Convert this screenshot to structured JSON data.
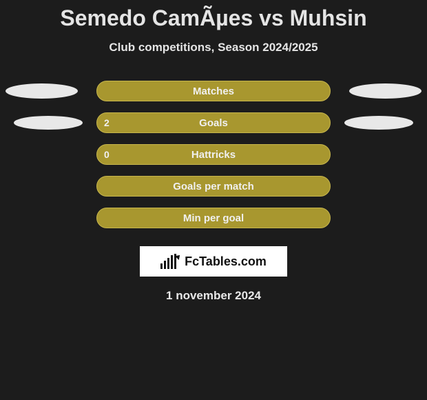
{
  "title": "Semedo CamÃµes vs Muhsin",
  "subtitle": "Club competitions, Season 2024/2025",
  "rows": [
    {
      "label": "Matches",
      "left_value": "",
      "show_left_ellipse": true,
      "show_right_ellipse": true,
      "ellipse_class_left": "ell-1-left",
      "ellipse_class_right": "ell-1-right"
    },
    {
      "label": "Goals",
      "left_value": "2",
      "show_left_ellipse": true,
      "show_right_ellipse": true,
      "ellipse_class_left": "ell-2-left",
      "ellipse_class_right": "ell-2-right"
    },
    {
      "label": "Hattricks",
      "left_value": "0",
      "show_left_ellipse": false,
      "show_right_ellipse": false
    },
    {
      "label": "Goals per match",
      "left_value": "",
      "show_left_ellipse": false,
      "show_right_ellipse": false
    },
    {
      "label": "Min per goal",
      "left_value": "",
      "show_left_ellipse": false,
      "show_right_ellipse": false
    }
  ],
  "logo_text": "FcTables.com",
  "date": "1 november 2024",
  "colors": {
    "background": "#1c1c1c",
    "bar_fill": "#a8972f",
    "bar_border": "#c7b64c",
    "ellipse": "#e8e8e8",
    "text_light": "#e4e4e4",
    "logo_bg": "#ffffff",
    "logo_text": "#111111"
  }
}
